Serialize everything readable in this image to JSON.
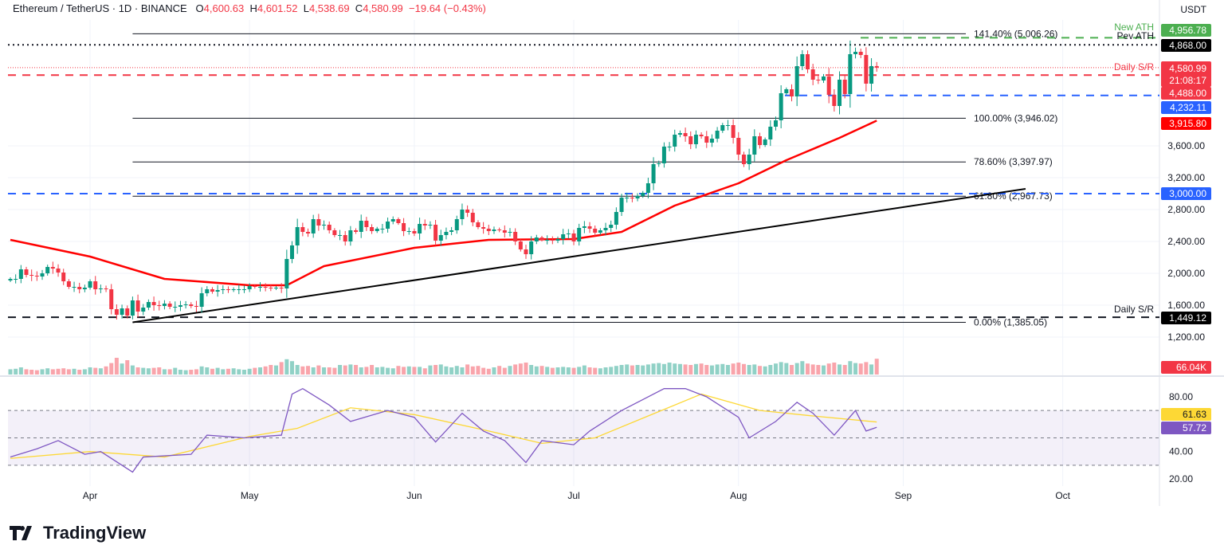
{
  "header": {
    "symbol": "Ethereum / TetherUS · 1D · BINANCE",
    "o_label": "O",
    "o": "4,600.63",
    "h_label": "H",
    "h": "4,601.52",
    "l_label": "L",
    "l": "4,538.69",
    "c_label": "C",
    "c": "4,580.99",
    "change": "−19.64 (−0.43%)",
    "currency": "USDT"
  },
  "branding": {
    "logo": "TradingView"
  },
  "colors": {
    "up": "#089981",
    "down": "#f23645",
    "ema": "#ff0000",
    "rsi": "#7e57c2",
    "rsi_ma": "#fdd835",
    "ath": "#4caf50",
    "blue": "#2962ff"
  },
  "chart_data": {
    "type": "candlestick",
    "start_date": "2025-03-17",
    "ylim": [
      1100,
      5100
    ],
    "price_ticks": [
      "3,600.00",
      "3,200.00",
      "2,800.00",
      "2,400.00",
      "2,000.00",
      "1,600.00",
      "1,200.00"
    ],
    "price_tick_values": [
      3600,
      3200,
      2800,
      2400,
      2000,
      1600,
      1200
    ],
    "x_ticks": [
      {
        "label": "Apr",
        "date": "2025-04-01"
      },
      {
        "label": "May",
        "date": "2025-05-01"
      },
      {
        "label": "Jun",
        "date": "2025-06-01"
      },
      {
        "label": "Jul",
        "date": "2025-07-01"
      },
      {
        "label": "Aug",
        "date": "2025-08-01"
      },
      {
        "label": "Sep",
        "date": "2025-09-01"
      },
      {
        "label": "Oct",
        "date": "2025-10-01"
      }
    ],
    "close": [
      1930,
      1930,
      2050,
      1980,
      1970,
      1960,
      2000,
      2080,
      2060,
      2010,
      1900,
      1830,
      1830,
      1800,
      1820,
      1900,
      1800,
      1810,
      1800,
      1550,
      1480,
      1560,
      1470,
      1660,
      1520,
      1570,
      1640,
      1600,
      1590,
      1620,
      1580,
      1580,
      1600,
      1610,
      1590,
      1580,
      1750,
      1800,
      1770,
      1790,
      1800,
      1790,
      1800,
      1800,
      1800,
      1840,
      1830,
      1830,
      1820,
      1810,
      1820,
      1810,
      2180,
      2350,
      2580,
      2520,
      2500,
      2680,
      2600,
      2610,
      2540,
      2480,
      2480,
      2400,
      2540,
      2520,
      2660,
      2580,
      2530,
      2560,
      2560,
      2650,
      2680,
      2630,
      2530,
      2530,
      2500,
      2620,
      2600,
      2610,
      2410,
      2480,
      2520,
      2540,
      2680,
      2800,
      2760,
      2640,
      2580,
      2560,
      2530,
      2550,
      2540,
      2510,
      2520,
      2400,
      2300,
      2240,
      2400,
      2450,
      2420,
      2420,
      2410,
      2430,
      2490,
      2500,
      2400,
      2570,
      2590,
      2560,
      2510,
      2540,
      2570,
      2610,
      2770,
      2950,
      2950,
      2940,
      2970,
      3010,
      3130,
      3370,
      3380,
      3590,
      3590,
      3740,
      3760,
      3720,
      3620,
      3740,
      3720,
      3640,
      3690,
      3790,
      3860,
      3860,
      3700,
      3490,
      3370,
      3490,
      3720,
      3610,
      3680,
      3840,
      3920,
      4260,
      4310,
      4220,
      4600,
      4750,
      4560,
      4430,
      4420,
      4470,
      4240,
      4100,
      4430,
      4250,
      4750,
      4780,
      4740,
      4380,
      4600.63,
      4580.99
    ],
    "volume_k": [
      22,
      24,
      30,
      22,
      20,
      18,
      22,
      26,
      22,
      24,
      26,
      22,
      24,
      20,
      22,
      30,
      28,
      26,
      34,
      48,
      70,
      46,
      60,
      38,
      30,
      28,
      26,
      28,
      30,
      22,
      22,
      28,
      20,
      18,
      20,
      22,
      34,
      30,
      24,
      28,
      22,
      24,
      26,
      22,
      20,
      24,
      28,
      30,
      34,
      40,
      38,
      52,
      64,
      56,
      40,
      34,
      36,
      30,
      38,
      30,
      30,
      28,
      40,
      38,
      42,
      40,
      30,
      32,
      40,
      30,
      32,
      28,
      26,
      36,
      32,
      34,
      32,
      32,
      26,
      38,
      40,
      42,
      34,
      30,
      36,
      30,
      42,
      34,
      36,
      28,
      24,
      30,
      36,
      28,
      36,
      42,
      46,
      50,
      40,
      34,
      36,
      32,
      28,
      30,
      32,
      30,
      28,
      32,
      38,
      30,
      28,
      26,
      30,
      32,
      36,
      40,
      42,
      38,
      40,
      38,
      42,
      46,
      48,
      44,
      50,
      46,
      44,
      42,
      40,
      44,
      46,
      40,
      38,
      42,
      44,
      40,
      46,
      50,
      44,
      40,
      42,
      36,
      34,
      40,
      46,
      52,
      48,
      40,
      48,
      56,
      46,
      42,
      40,
      38,
      46,
      50,
      42,
      40,
      56,
      48,
      46,
      52,
      42,
      66.04
    ],
    "ema50": [
      {
        "date": "2025-03-17",
        "value": 2420
      },
      {
        "date": "2025-04-01",
        "value": 2210
      },
      {
        "date": "2025-04-15",
        "value": 1930
      },
      {
        "date": "2025-05-01",
        "value": 1850
      },
      {
        "date": "2025-05-08",
        "value": 1850
      },
      {
        "date": "2025-05-15",
        "value": 2090
      },
      {
        "date": "2025-06-01",
        "value": 2320
      },
      {
        "date": "2025-06-15",
        "value": 2420
      },
      {
        "date": "2025-07-01",
        "value": 2430
      },
      {
        "date": "2025-07-10",
        "value": 2520
      },
      {
        "date": "2025-07-20",
        "value": 2850
      },
      {
        "date": "2025-08-01",
        "value": 3130
      },
      {
        "date": "2025-08-10",
        "value": 3420
      },
      {
        "date": "2025-08-20",
        "value": 3700
      },
      {
        "date": "2025-08-27",
        "value": 3915.8
      }
    ],
    "fib_levels": [
      {
        "label": "141.40% (5,006.26)",
        "value": 5006.26
      },
      {
        "label": "100.00% (3,946.02)",
        "value": 3946.02
      },
      {
        "label": "78.60% (3,397.97)",
        "value": 3397.97
      },
      {
        "label": "61.80% (2,967.73)",
        "value": 2967.73
      },
      {
        "label": "0.00% (1,385.05)",
        "value": 1385.05
      }
    ],
    "fib_start_date": "2025-04-09",
    "trendline": [
      {
        "date": "2025-04-09",
        "value": 1385
      },
      {
        "date": "2025-09-24",
        "value": 3060
      }
    ],
    "levels": {
      "new_ath": {
        "label": "New ATH",
        "value": 4956.78,
        "tag": "4,956.78"
      },
      "prev_ath": {
        "label": "Pev ATH",
        "value": 4868.0,
        "tag": "4,868.00"
      },
      "last_price": {
        "value": 4580.99,
        "tag": "4,580.99",
        "countdown": "21:08:17"
      },
      "daily_sr_upper": {
        "label": "Daily S/R",
        "value": 4488.0,
        "tag": "4,488.00"
      },
      "support_blue": {
        "value": 4232.11,
        "tag": "4,232.11"
      },
      "ema_tag": "3,915.80",
      "blue_3000": {
        "value": 3000,
        "tag": "3,000.00"
      },
      "daily_sr_lower": {
        "label": "Daily S/R",
        "value": 1449.12,
        "tag": "1,449.12"
      },
      "volume_tag": "66.04K"
    },
    "rsi": {
      "ticks": [
        "80.00",
        "40.00",
        "20.00"
      ],
      "tick_values": [
        80,
        40,
        20
      ],
      "bands": [
        70,
        50,
        30
      ],
      "rsi_tag": "57.72",
      "ma_tag": "61.63",
      "rsi_points": [
        {
          "date": "2025-03-17",
          "value": 36
        },
        {
          "date": "2025-03-22",
          "value": 42
        },
        {
          "date": "2025-03-26",
          "value": 48
        },
        {
          "date": "2025-03-31",
          "value": 38
        },
        {
          "date": "2025-04-03",
          "value": 40
        },
        {
          "date": "2025-04-09",
          "value": 25
        },
        {
          "date": "2025-04-11",
          "value": 36
        },
        {
          "date": "2025-04-20",
          "value": 38
        },
        {
          "date": "2025-04-23",
          "value": 52
        },
        {
          "date": "2025-04-30",
          "value": 50
        },
        {
          "date": "2025-05-07",
          "value": 52
        },
        {
          "date": "2025-05-09",
          "value": 82
        },
        {
          "date": "2025-05-11",
          "value": 86
        },
        {
          "date": "2025-05-16",
          "value": 74
        },
        {
          "date": "2025-05-20",
          "value": 62
        },
        {
          "date": "2025-05-27",
          "value": 70
        },
        {
          "date": "2025-06-01",
          "value": 65
        },
        {
          "date": "2025-06-05",
          "value": 47
        },
        {
          "date": "2025-06-10",
          "value": 68
        },
        {
          "date": "2025-06-14",
          "value": 55
        },
        {
          "date": "2025-06-18",
          "value": 48
        },
        {
          "date": "2025-06-22",
          "value": 32
        },
        {
          "date": "2025-06-25",
          "value": 48
        },
        {
          "date": "2025-07-01",
          "value": 45
        },
        {
          "date": "2025-07-04",
          "value": 55
        },
        {
          "date": "2025-07-10",
          "value": 70
        },
        {
          "date": "2025-07-14",
          "value": 78
        },
        {
          "date": "2025-07-18",
          "value": 86
        },
        {
          "date": "2025-07-22",
          "value": 86
        },
        {
          "date": "2025-07-26",
          "value": 80
        },
        {
          "date": "2025-08-01",
          "value": 65
        },
        {
          "date": "2025-08-03",
          "value": 50
        },
        {
          "date": "2025-08-08",
          "value": 62
        },
        {
          "date": "2025-08-12",
          "value": 76
        },
        {
          "date": "2025-08-15",
          "value": 68
        },
        {
          "date": "2025-08-19",
          "value": 52
        },
        {
          "date": "2025-08-23",
          "value": 70
        },
        {
          "date": "2025-08-25",
          "value": 55
        },
        {
          "date": "2025-08-27",
          "value": 57.72
        }
      ],
      "ma_points": [
        {
          "date": "2025-03-17",
          "value": 35
        },
        {
          "date": "2025-04-01",
          "value": 40
        },
        {
          "date": "2025-04-15",
          "value": 36
        },
        {
          "date": "2025-05-01",
          "value": 51
        },
        {
          "date": "2025-05-10",
          "value": 57
        },
        {
          "date": "2025-05-20",
          "value": 72
        },
        {
          "date": "2025-06-01",
          "value": 67
        },
        {
          "date": "2025-06-15",
          "value": 55
        },
        {
          "date": "2025-06-25",
          "value": 46
        },
        {
          "date": "2025-07-05",
          "value": 50
        },
        {
          "date": "2025-07-15",
          "value": 66
        },
        {
          "date": "2025-07-25",
          "value": 82
        },
        {
          "date": "2025-08-05",
          "value": 70
        },
        {
          "date": "2025-08-15",
          "value": 66
        },
        {
          "date": "2025-08-27",
          "value": 61.63
        }
      ]
    }
  }
}
